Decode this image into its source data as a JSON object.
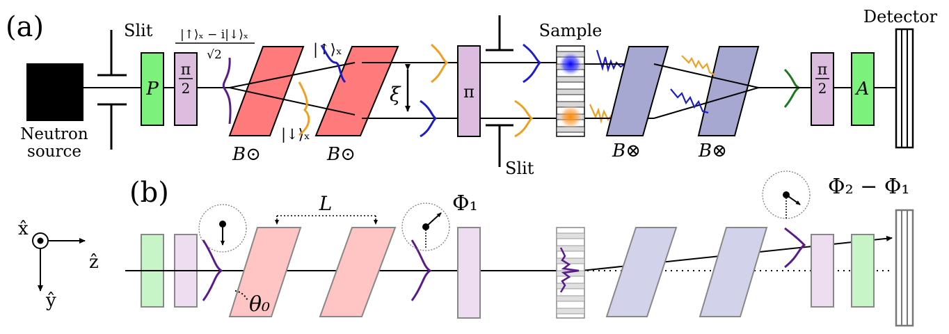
{
  "panel_a": {
    "label": "(a)",
    "slit_top": "Slit",
    "slit_bottom": "Slit",
    "source_line1": "Neutron",
    "source_line2": "source",
    "polarizer": "P",
    "pi_half": "π",
    "pi_half_den": "2",
    "state_superposition": "|↑⟩ₓ − i|↓⟩ₓ",
    "state_superposition_den": "√2",
    "state_up": "|↑⟩ₓ",
    "state_down": "|↓⟩ₓ",
    "field_dot": "B⊙",
    "field_cross": "B⊗",
    "separation": "ξ",
    "pi_flipper": "π",
    "sample": "Sample",
    "analyzer": "A",
    "detector": "Detector"
  },
  "panel_b": {
    "label": "(b)",
    "axis_x": "x̂",
    "axis_z": "ẑ",
    "axis_y": "ŷ",
    "length": "L",
    "angle": "θ₀",
    "phase_1": "Φ₁",
    "phase_diff": "Φ₂ − Φ₁"
  },
  "colors": {
    "polarizer_green": "#7cf27c",
    "pi_half_lilac": "#dcbddf",
    "dot_prism_red": "#ff7b7b",
    "cross_prism_blue": "#a6a8d2",
    "spin_up_blue": "#1c1cc8",
    "spin_down_orange": "#f0a020",
    "wavepacket_purple": "#5a1a8a",
    "analyzed_green": "#1a7a1a"
  }
}
